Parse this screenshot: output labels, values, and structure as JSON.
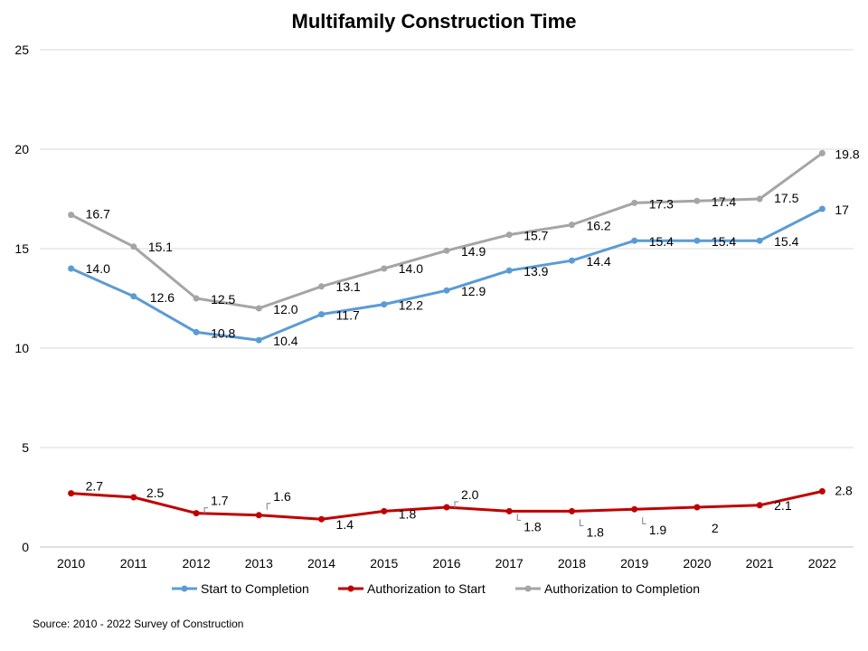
{
  "chart_data": {
    "type": "line",
    "title": "Multifamily Construction Time",
    "xlabel": "",
    "ylabel": "",
    "ylim": [
      0,
      25
    ],
    "yticks": [
      0,
      5,
      10,
      15,
      20,
      25
    ],
    "grid": true,
    "legend_position": "bottom",
    "x": [
      "2010",
      "2011",
      "2012",
      "2013",
      "2014",
      "2015",
      "2016",
      "2017",
      "2018",
      "2019",
      "2020",
      "2021",
      "2022"
    ],
    "series": [
      {
        "name": "Start to Completion",
        "color": "#5b9bd5",
        "values": [
          14.0,
          12.6,
          10.8,
          10.4,
          11.7,
          12.2,
          12.9,
          13.9,
          14.4,
          15.4,
          15.4,
          15.4,
          17
        ],
        "labels": [
          "14.0",
          "12.6",
          "10.8",
          "10.4",
          "11.7",
          "12.2",
          "12.9",
          "13.9",
          "14.4",
          "15.4",
          "15.4",
          "15.4",
          "17"
        ]
      },
      {
        "name": "Authorization to Start",
        "color": "#c00000",
        "values": [
          2.7,
          2.5,
          1.7,
          1.6,
          1.4,
          1.8,
          2.0,
          1.8,
          1.8,
          1.9,
          2,
          2.1,
          2.8
        ],
        "labels": [
          "2.7",
          "2.5",
          "1.7",
          "1.6",
          "1.4",
          "1.8",
          "2.0",
          "1.8",
          "1.8",
          "1.9",
          "2",
          "2.1",
          "2.8"
        ]
      },
      {
        "name": "Authorization to Completion",
        "color": "#a5a5a5",
        "values": [
          16.7,
          15.1,
          12.5,
          12.0,
          13.1,
          14.0,
          14.9,
          15.7,
          16.2,
          17.3,
          17.4,
          17.5,
          19.8
        ],
        "labels": [
          "16.7",
          "15.1",
          "12.5",
          "12.0",
          "13.1",
          "14.0",
          "14.9",
          "15.7",
          "16.2",
          "17.3",
          "17.4",
          "17.5",
          "19.8"
        ]
      }
    ]
  },
  "source": "Source: 2010 - 2022 Survey of Construction"
}
